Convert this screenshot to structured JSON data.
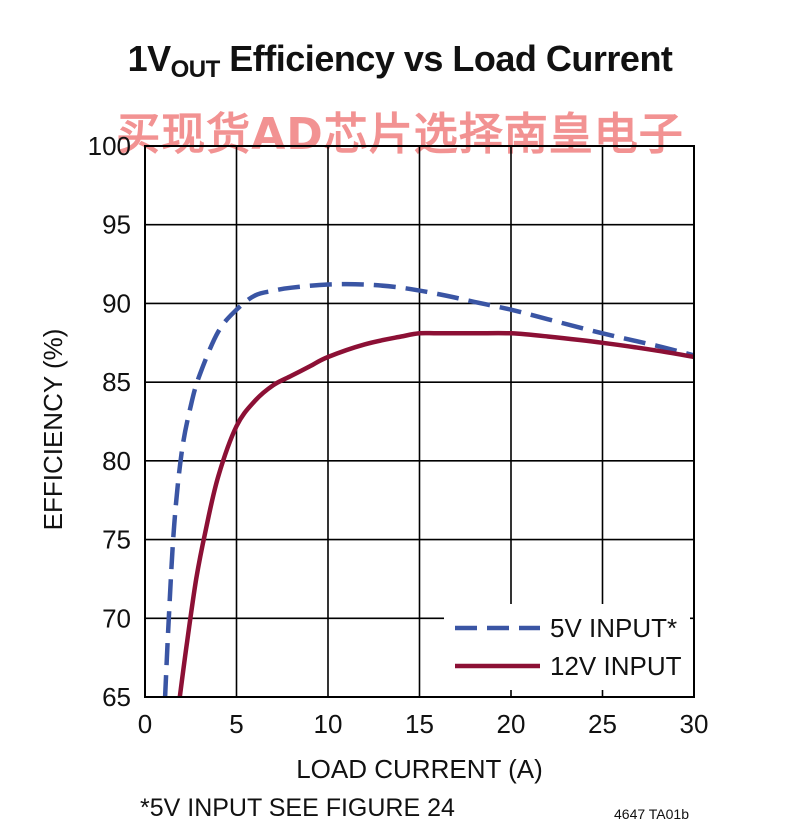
{
  "title": {
    "prefix": "1V",
    "subscript": "OUT",
    "suffix": " Efficiency vs Load Current"
  },
  "watermark": "买现货AD芯片选择南皇电子",
  "footnote": "*5V INPUT SEE FIGURE 24",
  "figure_id": "4647 TA01b",
  "chart_data": {
    "type": "line",
    "xlabel": "LOAD CURRENT (A)",
    "ylabel": "EFFICIENCY (%)",
    "xlim": [
      0,
      30
    ],
    "ylim": [
      65,
      100
    ],
    "x_ticks": [
      0,
      5,
      10,
      15,
      20,
      25,
      30
    ],
    "y_ticks": [
      65,
      70,
      75,
      80,
      85,
      90,
      95,
      100
    ],
    "grid": true,
    "legend_position": "bottom-right",
    "series": [
      {
        "name": "5V INPUT*",
        "color": "#3a55a4",
        "style": "dashed",
        "x": [
          1.1,
          1.3,
          1.6,
          2.0,
          2.5,
          3.0,
          4.0,
          5.0,
          6.0,
          7.0,
          8.0,
          10.0,
          12.0,
          14.0,
          16.0,
          18.0,
          20.0,
          22.0,
          25.0,
          28.0,
          30.0
        ],
        "y": [
          65,
          70,
          76,
          80.5,
          83.5,
          85.5,
          88.2,
          89.6,
          90.5,
          90.8,
          91.0,
          91.2,
          91.2,
          91.0,
          90.6,
          90.1,
          89.6,
          89.0,
          88.1,
          87.3,
          86.7
        ]
      },
      {
        "name": "12V INPUT",
        "color": "#8c1035",
        "style": "solid",
        "x": [
          1.9,
          2.3,
          2.8,
          3.3,
          4.0,
          5.0,
          6.0,
          7.0,
          8.0,
          9.0,
          10.0,
          12.0,
          14.0,
          15.0,
          16.0,
          18.0,
          20.0,
          22.0,
          25.0,
          28.0,
          30.0
        ],
        "y": [
          65,
          68.5,
          72.5,
          75.5,
          79.0,
          82.2,
          83.8,
          84.8,
          85.4,
          86.0,
          86.6,
          87.4,
          87.9,
          88.1,
          88.1,
          88.1,
          88.1,
          87.9,
          87.5,
          87.0,
          86.6
        ]
      }
    ]
  }
}
